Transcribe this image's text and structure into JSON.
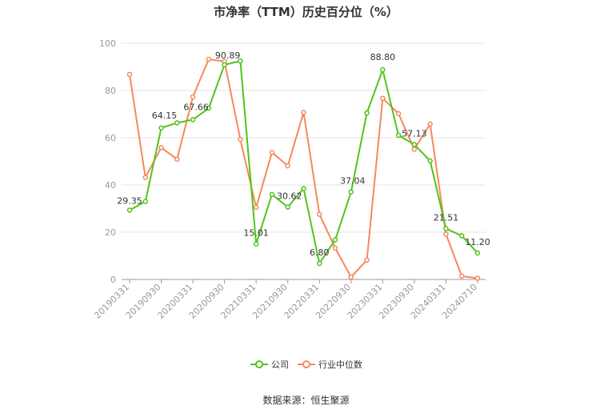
{
  "chart_data": {
    "type": "line",
    "title": "市净率（TTM）历史百分位（%）",
    "ylim": [
      0,
      100
    ],
    "yticks": [
      0,
      20,
      40,
      60,
      80,
      100
    ],
    "grid": true,
    "legend_position": "bottom",
    "x": [
      "20190331",
      "20190630",
      "20190930",
      "20191231",
      "20200331",
      "20200630",
      "20200930",
      "20201231",
      "20210331",
      "20210630",
      "20210930",
      "20211231",
      "20220331",
      "20220630",
      "20220930",
      "20221231",
      "20230331",
      "20230630",
      "20230930",
      "20231231",
      "20240331",
      "20240630",
      "20240710"
    ],
    "x_tick_labels": [
      "20190331",
      "20190930",
      "20200331",
      "20200930",
      "20210331",
      "20210930",
      "20220331",
      "20220930",
      "20230331",
      "20230930",
      "20240331",
      "20240710"
    ],
    "series": [
      {
        "name": "公司",
        "color": "#52c41a",
        "values": [
          29.35,
          33.0,
          64.15,
          66.3,
          67.66,
          72.5,
          90.89,
          92.5,
          15.01,
          36.0,
          30.62,
          38.5,
          6.8,
          16.8,
          37.04,
          70.5,
          88.8,
          61.0,
          57.13,
          50.2,
          21.51,
          18.5,
          11.2
        ],
        "labels": {
          "0": "29.35",
          "2": "64.15",
          "4": "67.66",
          "6": "90.89",
          "8": "15.01",
          "10": "30.62",
          "12": "6.80",
          "14": "37.04",
          "16": "88.80",
          "18": "57.13",
          "20": "21.51",
          "22": "11.20"
        }
      },
      {
        "name": "行业中位数",
        "color": "#f5895a",
        "values": [
          86.8,
          43.2,
          55.8,
          50.9,
          77.3,
          93.2,
          92.3,
          59.3,
          30.5,
          53.8,
          48.1,
          70.7,
          27.6,
          13.3,
          1.0,
          8.2,
          76.7,
          70.2,
          55.1,
          65.8,
          19.2,
          1.4,
          0.5
        ]
      }
    ]
  },
  "source_text": "数据来源：恒生聚源"
}
